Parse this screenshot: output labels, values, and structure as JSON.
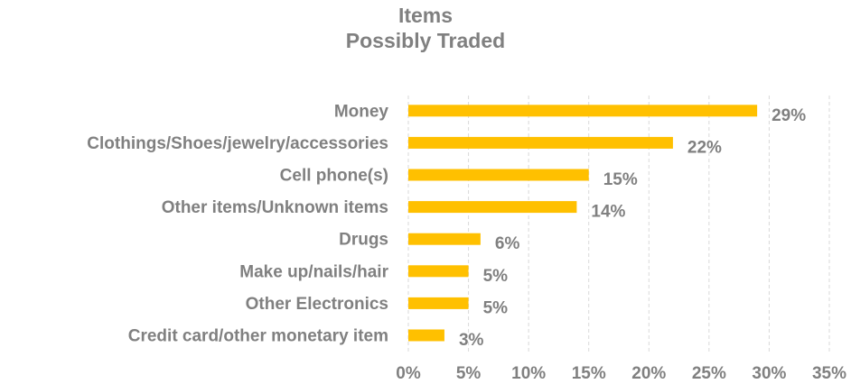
{
  "chart_data": {
    "type": "bar",
    "orientation": "horizontal",
    "title": [
      "Items",
      "Possibly Traded"
    ],
    "categories": [
      "Money",
      "Clothings/Shoes/jewelry/accessories",
      "Cell phone(s)",
      "Other items/Unknown items",
      "Drugs",
      "Make up/nails/hair",
      "Other Electronics",
      "Credit card/other monetary item"
    ],
    "values": [
      29,
      22,
      15,
      14,
      6,
      5,
      5,
      3
    ],
    "value_labels": [
      "29%",
      "22%",
      "15%",
      "14%",
      "6%",
      "5%",
      "5%",
      "3%"
    ],
    "xlim": [
      0,
      35
    ],
    "x_ticks": [
      "0%",
      "5%",
      "10%",
      "15%",
      "20%",
      "25%",
      "30%",
      "35%"
    ],
    "grid": "vertical-dashed",
    "legend": "none",
    "bar_color": "#FFC000",
    "text_color": "#808080",
    "grid_color": "#D9D9D9"
  }
}
